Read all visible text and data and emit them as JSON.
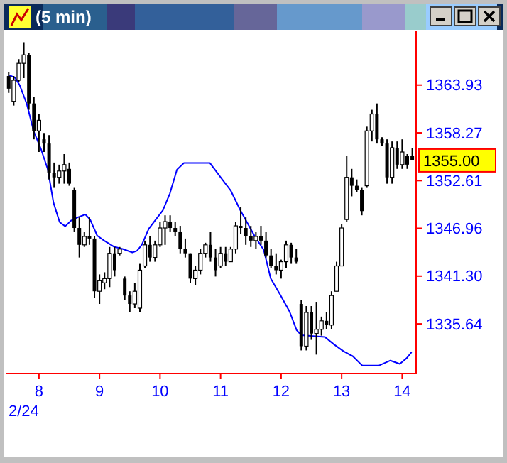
{
  "chart_data": {
    "type": "candlestick",
    "title": "(5 min)",
    "color": "#000000",
    "x": [
      7.5,
      7.5833,
      7.6667,
      7.75,
      7.8333,
      7.9167,
      8,
      8.0833,
      8.1667,
      8.25,
      8.3333,
      8.4167,
      8.5,
      8.5833,
      8.6667,
      8.75,
      8.8333,
      8.9167,
      9,
      9.0833,
      9.1667,
      9.25,
      9.3333,
      9.4167,
      9.5,
      9.5833,
      9.6667,
      9.75,
      9.8333,
      9.9167,
      10,
      10.0833,
      10.1667,
      10.25,
      10.3333,
      10.4167,
      10.5,
      10.5833,
      10.6667,
      10.75,
      10.8333,
      10.9167,
      11,
      11.0833,
      11.1667,
      11.25,
      11.3333,
      11.4167,
      11.5,
      11.5833,
      11.6667,
      11.75,
      11.8333,
      11.9167,
      12,
      12.0833,
      12.1667,
      12.25,
      12.3333,
      12.4167,
      12.5,
      12.5833,
      12.6667,
      12.75,
      12.8333,
      12.9167,
      13,
      13.0833,
      13.1667,
      13.25,
      13.3333,
      13.4167,
      13.5,
      13.5833,
      13.6667,
      13.75,
      13.8333,
      13.9167,
      14,
      14.0833,
      14.1667
    ],
    "ohlc": [
      [
        1365.0,
        1365.5,
        1363.0,
        1363.5
      ],
      [
        1362.0,
        1365.0,
        1361.5,
        1364.5
      ],
      [
        1364.5,
        1367.0,
        1364.25,
        1366.5
      ],
      [
        1366.5,
        1369.0,
        1364.75,
        1367.5
      ],
      [
        1367.5,
        1367.75,
        1361.0,
        1361.75
      ],
      [
        1361.75,
        1362.5,
        1357.5,
        1358.5
      ],
      [
        1358.5,
        1360.5,
        1356.0,
        1359.75
      ],
      [
        1357.5,
        1358.25,
        1356.0,
        1357.0
      ],
      [
        1357.0,
        1358.0,
        1352.75,
        1353.5
      ],
      [
        1353.5,
        1354.75,
        1351.75,
        1353.0
      ],
      [
        1353.0,
        1354.5,
        1352.25,
        1353.75
      ],
      [
        1353.75,
        1355.75,
        1352.25,
        1354.5
      ],
      [
        1354.0,
        1354.75,
        1352.0,
        1352.25
      ],
      [
        1351.5,
        1351.75,
        1346.5,
        1347.0
      ],
      [
        1347.0,
        1348.25,
        1343.5,
        1345.0
      ],
      [
        1345.0,
        1346.5,
        1344.75,
        1346.0
      ],
      [
        1346.0,
        1348.25,
        1345.0,
        1345.75
      ],
      [
        1345.75,
        1346.0,
        1338.75,
        1339.5
      ],
      [
        1339.5,
        1341.5,
        1338.0,
        1340.75
      ],
      [
        1340.5,
        1341.75,
        1339.75,
        1341.0
      ],
      [
        1341.0,
        1344.75,
        1340.0,
        1344.0
      ],
      [
        1344.0,
        1344.75,
        1341.25,
        1342.0
      ],
      [
        1344.0,
        1344.75,
        1343.75,
        1344.5
      ],
      [
        1341.0,
        1341.25,
        1338.5,
        1339.0
      ],
      [
        1339.0,
        1339.5,
        1337.0,
        1338.0
      ],
      [
        1338.0,
        1340.5,
        1337.5,
        1339.5
      ],
      [
        1337.5,
        1342.75,
        1337.0,
        1342.0
      ],
      [
        1342.5,
        1345.5,
        1342.25,
        1345.0
      ],
      [
        1345.0,
        1346.0,
        1343.0,
        1343.5
      ],
      [
        1343.5,
        1345.5,
        1343.0,
        1345.0
      ],
      [
        1345.0,
        1347.75,
        1344.75,
        1347.0
      ],
      [
        1347.0,
        1348.5,
        1345.0,
        1347.75
      ],
      [
        1347.75,
        1348.5,
        1346.5,
        1347.0
      ],
      [
        1347.0,
        1347.75,
        1346.0,
        1346.5
      ],
      [
        1346.5,
        1347.25,
        1344.0,
        1344.5
      ],
      [
        1344.5,
        1345.75,
        1343.5,
        1344.0
      ],
      [
        1344.0,
        1344.0,
        1340.5,
        1341.0
      ],
      [
        1341.0,
        1342.5,
        1340.25,
        1342.0
      ],
      [
        1342.0,
        1344.5,
        1341.5,
        1344.0
      ],
      [
        1344.0,
        1345.25,
        1343.5,
        1345.0
      ],
      [
        1345.0,
        1346.5,
        1343.0,
        1343.5
      ],
      [
        1343.5,
        1344.5,
        1341.25,
        1342.0
      ],
      [
        1342.5,
        1344.75,
        1342.25,
        1344.0
      ],
      [
        1344.0,
        1344.75,
        1342.5,
        1343.0
      ],
      [
        1343.0,
        1344.75,
        1343.0,
        1344.5
      ],
      [
        1344.5,
        1347.75,
        1344.0,
        1347.25
      ],
      [
        1347.25,
        1349.5,
        1346.25,
        1347.0
      ],
      [
        1347.0,
        1348.25,
        1345.0,
        1346.0
      ],
      [
        1346.0,
        1347.25,
        1344.75,
        1345.5
      ],
      [
        1345.5,
        1346.5,
        1344.5,
        1346.0
      ],
      [
        1346.0,
        1347.25,
        1345.0,
        1345.5
      ],
      [
        1345.5,
        1346.5,
        1343.5,
        1343.75
      ],
      [
        1343.75,
        1344.5,
        1342.25,
        1342.5
      ],
      [
        1342.5,
        1344.0,
        1341.5,
        1342.0
      ],
      [
        1342.0,
        1343.25,
        1341.0,
        1343.0
      ],
      [
        1343.0,
        1345.5,
        1342.25,
        1345.0
      ],
      [
        1345.0,
        1345.25,
        1342.75,
        1343.5
      ],
      [
        1343.5,
        1344.5,
        1342.75,
        1343.0
      ],
      [
        1338.0,
        1338.5,
        1332.5,
        1333.0
      ],
      [
        1333.0,
        1337.75,
        1332.5,
        1337.0
      ],
      [
        1337.0,
        1337.75,
        1333.75,
        1334.5
      ],
      [
        1334.5,
        1338.25,
        1332.0,
        1335.0
      ],
      [
        1335.0,
        1336.5,
        1334.25,
        1336.0
      ],
      [
        1336.0,
        1337.0,
        1335.0,
        1335.5
      ],
      [
        1335.5,
        1339.5,
        1335.0,
        1339.0
      ],
      [
        1339.5,
        1343.0,
        1339.5,
        1342.5
      ],
      [
        1342.5,
        1347.5,
        1342.5,
        1347.0
      ],
      [
        1348.0,
        1355.5,
        1347.75,
        1353.0
      ],
      [
        1353.0,
        1354.0,
        1350.75,
        1352.0
      ],
      [
        1352.0,
        1352.75,
        1351.25,
        1351.5
      ],
      [
        1351.5,
        1351.75,
        1348.5,
        1349.0
      ],
      [
        1352.0,
        1359.0,
        1351.75,
        1358.5
      ],
      [
        1358.5,
        1361.0,
        1357.25,
        1360.5
      ],
      [
        1360.5,
        1361.75,
        1357.0,
        1357.5
      ],
      [
        1357.5,
        1357.75,
        1356.75,
        1357.0
      ],
      [
        1357.0,
        1357.5,
        1352.25,
        1353.0
      ],
      [
        1353.0,
        1357.25,
        1352.25,
        1356.5
      ],
      [
        1356.5,
        1357.25,
        1354.0,
        1354.5
      ],
      [
        1354.5,
        1357.5,
        1354.0,
        1356.0
      ],
      [
        1355.5,
        1355.75,
        1354.0,
        1354.5
      ],
      [
        1355.5,
        1356.5,
        1355.0,
        1355.0
      ]
    ],
    "series": [
      {
        "type": "line",
        "color": "#0000ff",
        "x": [
          7.512,
          7.605,
          7.682,
          7.798,
          7.915,
          8.031,
          8.147,
          8.24,
          8.341,
          8.434,
          8.535,
          8.651,
          8.767,
          8.845,
          8.961,
          9.077,
          9.233,
          9.388,
          9.543,
          9.62,
          9.698,
          9.814,
          9.93,
          10.047,
          10.163,
          10.279,
          10.395,
          10.822,
          11.17,
          11.326,
          11.558,
          11.713,
          11.829,
          11.985,
          12.14,
          12.256,
          12.333,
          12.721,
          12.876,
          13.031,
          13.186,
          13.341,
          13.612,
          13.806,
          13.961,
          14.077,
          14.155
        ],
        "values": [
          1365.1,
          1364.8,
          1363.9,
          1361.7,
          1358.4,
          1356.4,
          1353.9,
          1350.0,
          1347.7,
          1347.2,
          1347.9,
          1348.3,
          1348.6,
          1348.0,
          1346.1,
          1345.5,
          1344.8,
          1344.5,
          1344.1,
          1344.3,
          1345.0,
          1346.9,
          1348.0,
          1349.1,
          1351.1,
          1353.9,
          1354.7,
          1354.7,
          1351.4,
          1349.1,
          1346.1,
          1344.4,
          1341.0,
          1339.1,
          1337.1,
          1334.9,
          1334.3,
          1334.1,
          1333.2,
          1332.4,
          1331.8,
          1330.7,
          1330.7,
          1331.3,
          1330.9,
          1331.6,
          1332.3
        ]
      }
    ],
    "xlim": [
      7.45,
      14.23
    ],
    "xticks": [
      8,
      9,
      10,
      11,
      12,
      13,
      14
    ],
    "ylim": [
      1329.76,
      1370.3
    ],
    "yticks": [
      1335.64,
      {
        "value": 1341.3,
        "label": "1341.30"
      },
      1346.96,
      1352.61,
      1358.27,
      1363.93
    ],
    "annotations": [
      "2/24",
      {
        "text": "1355.00",
        "x": 14.1667,
        "y": 1355
      }
    ]
  }
}
